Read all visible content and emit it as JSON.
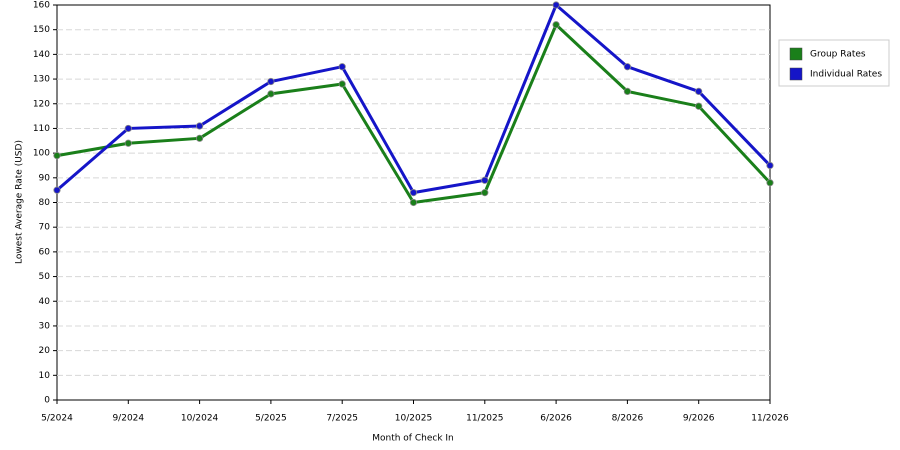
{
  "chart_data": {
    "type": "line",
    "x_label": "Month of Check In",
    "y_label": "Lowest Average Rate (USD)",
    "categories": [
      "5/2024",
      "9/2024",
      "10/2024",
      "5/2025",
      "7/2025",
      "10/2025",
      "11/2025",
      "6/2026",
      "8/2026",
      "9/2026",
      "11/2026"
    ],
    "series": [
      {
        "name": "Group Rates",
        "color": "#1a7f1a",
        "values": [
          99,
          104,
          106,
          124,
          128,
          80,
          84,
          152,
          125,
          119,
          88
        ]
      },
      {
        "name": "Individual Rates",
        "color": "#1515c8",
        "values": [
          85,
          110,
          111,
          129,
          135,
          84,
          89,
          160,
          135,
          125,
          95
        ]
      }
    ],
    "ylim": [
      0,
      160
    ],
    "yticks": [
      0,
      10,
      20,
      30,
      40,
      50,
      60,
      70,
      80,
      90,
      100,
      110,
      120,
      130,
      140,
      150,
      160
    ],
    "grid": true,
    "legend": "top-right"
  }
}
